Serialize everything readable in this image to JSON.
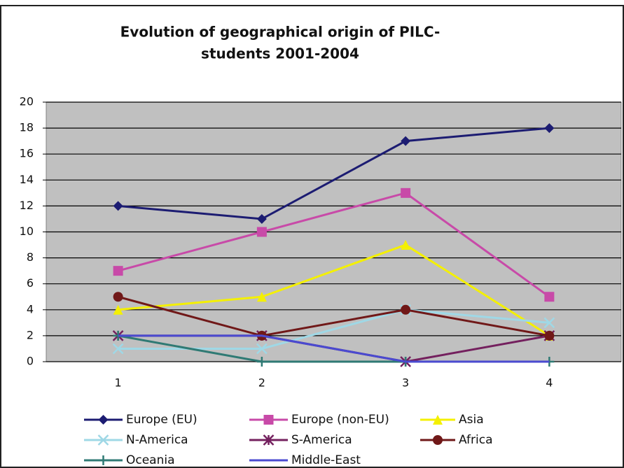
{
  "chart_data": {
    "type": "line",
    "title": [
      "Evolution of geographical origin of PILC-",
      "students 2001-2004"
    ],
    "categories": [
      "1",
      "2",
      "3",
      "4"
    ],
    "ylim": [
      0,
      20
    ],
    "yticks": [
      0,
      2,
      4,
      6,
      8,
      10,
      12,
      14,
      16,
      18,
      20
    ],
    "grid": true,
    "legend": "bottom",
    "series": [
      {
        "name": "Europe (EU)",
        "color": "#1c1c72",
        "marker": "diamond",
        "values": [
          12,
          11,
          17,
          18
        ]
      },
      {
        "name": "Europe (non-EU)",
        "color": "#c84aa8",
        "marker": "square",
        "values": [
          7,
          10,
          13,
          5
        ]
      },
      {
        "name": "Asia",
        "color": "#f4f000",
        "marker": "triangle",
        "values": [
          4,
          5,
          9,
          2
        ]
      },
      {
        "name": "N-America",
        "color": "#9fd8e6",
        "marker": "x",
        "values": [
          1,
          1,
          4,
          3
        ]
      },
      {
        "name": "S-America",
        "color": "#74205e",
        "marker": "asterisk",
        "values": [
          2,
          2,
          0,
          2
        ]
      },
      {
        "name": "Africa",
        "color": "#701818",
        "marker": "circle",
        "values": [
          5,
          2,
          4,
          2
        ]
      },
      {
        "name": "Oceania",
        "color": "#2f7a74",
        "marker": "plus",
        "values": [
          2,
          0,
          0,
          0
        ]
      },
      {
        "name": "Middle-East",
        "color": "#4a4ad0",
        "marker": "none",
        "values": [
          2,
          2,
          0,
          0
        ]
      }
    ]
  }
}
